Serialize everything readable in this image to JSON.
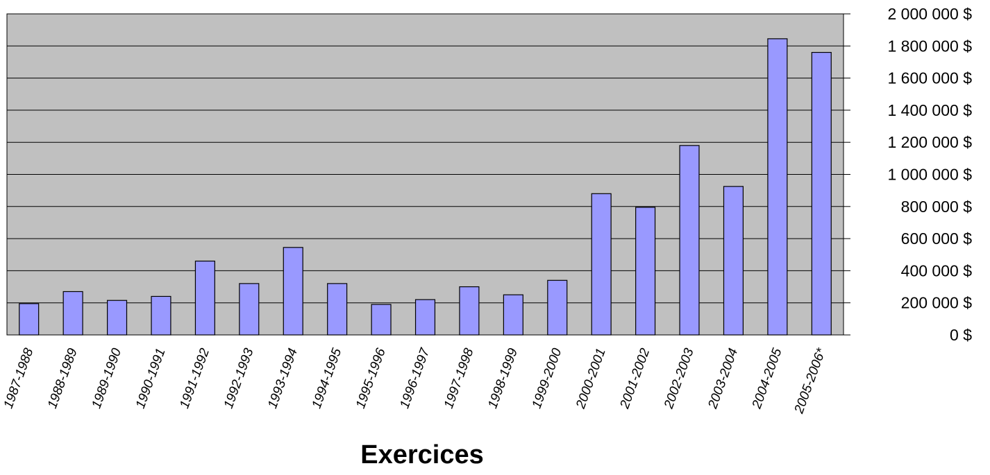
{
  "chart_data": {
    "type": "bar",
    "title": "",
    "xlabel": "Exercices",
    "ylabel": "",
    "ylim": [
      0,
      2000000
    ],
    "ytick_step": 200000,
    "ytick_labels": [
      "0 $",
      "200 000 $",
      "400 000 $",
      "600 000 $",
      "800 000 $",
      "1 000 000 $",
      "1 200 000 $",
      "1 400 000 $",
      "1 600 000 $",
      "1 800 000 $",
      "2 000 000 $"
    ],
    "y_axis_side": "right",
    "grid": true,
    "legend": "none",
    "categories": [
      "1987-1988",
      "1988-1989",
      "1989-1990",
      "1990-1991",
      "1991-1992",
      "1992-1993",
      "1993-1994",
      "1994-1995",
      "1995-1996",
      "1996-1997",
      "1997-1998",
      "1998-1999",
      "1999-2000",
      "2000-2001",
      "2001-2002",
      "2002-2003",
      "2003-2004",
      "2004-2005",
      "2005-2006*"
    ],
    "values": [
      195000,
      270000,
      215000,
      240000,
      460000,
      320000,
      545000,
      320000,
      190000,
      220000,
      300000,
      250000,
      340000,
      880000,
      795000,
      1180000,
      925000,
      1845000,
      1760000
    ],
    "colors": {
      "plot_background": "#c0c0c0",
      "bar_fill": "#9999ff",
      "bar_stroke": "#000000",
      "grid": "#000000"
    }
  }
}
